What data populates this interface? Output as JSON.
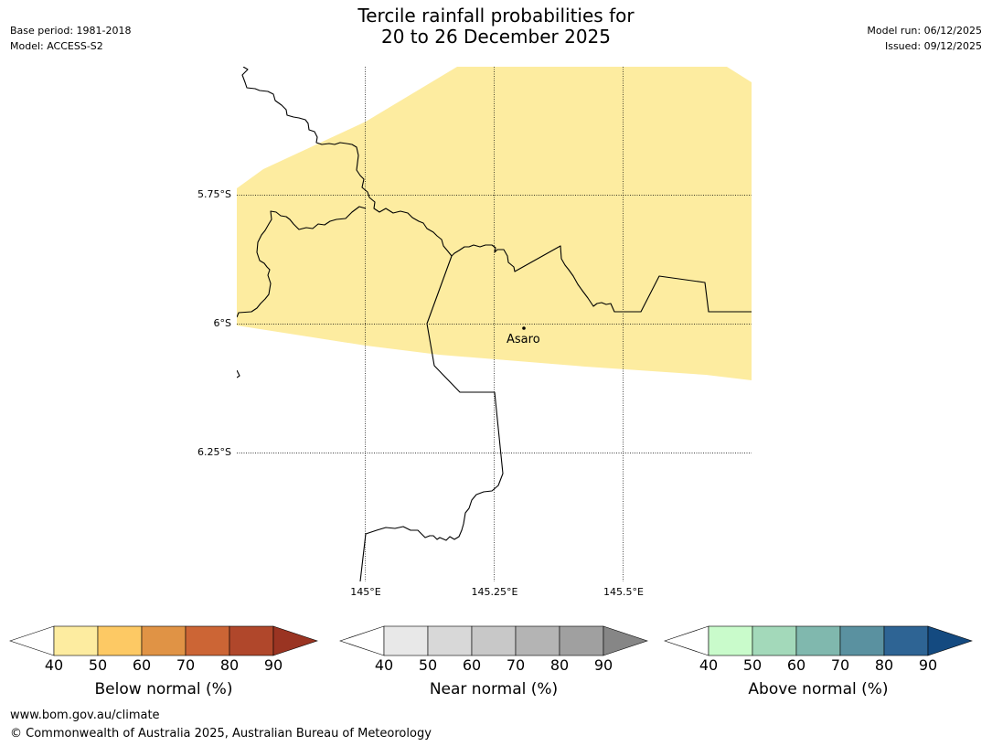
{
  "title": {
    "line1": "Tercile rainfall probabilities for",
    "line2": "20 to 26 December 2025"
  },
  "meta_left": {
    "base_period": "Base period: 1981-2018",
    "model": "Model: ACCESS-S2"
  },
  "meta_right": {
    "model_run": "Model run: 06/12/2025",
    "issued": "Issued: 09/12/2025"
  },
  "map": {
    "latitude_labels": [
      "5.75°S",
      "6°S",
      "6.25°S"
    ],
    "longitude_labels": [
      "145°E",
      "145.25°E",
      "145.5°E"
    ],
    "place_label": "Asaro",
    "fill_color": "#fdeca0",
    "shaded_category": "Below normal",
    "shaded_range": "40-50"
  },
  "colorbars": [
    {
      "name": "below",
      "label": "Below normal (%)",
      "ticks": [
        "40",
        "50",
        "60",
        "70",
        "80",
        "90"
      ],
      "colors": [
        "#fdeca0",
        "#fdc964",
        "#e09345",
        "#cc6535",
        "#b0472b",
        "#9a3422"
      ]
    },
    {
      "name": "near",
      "label": "Near normal (%)",
      "ticks": [
        "40",
        "50",
        "60",
        "70",
        "80",
        "90"
      ],
      "colors": [
        "#e8e8e8",
        "#d8d8d8",
        "#c8c8c8",
        "#b4b4b4",
        "#a0a0a0",
        "#868686"
      ]
    },
    {
      "name": "above",
      "label": "Above normal (%)",
      "ticks": [
        "40",
        "50",
        "60",
        "70",
        "80",
        "90"
      ],
      "colors": [
        "#c9fbcb",
        "#a3d9ba",
        "#80b8ae",
        "#5a91a0",
        "#2e6494",
        "#144a80"
      ]
    }
  ],
  "footer": {
    "url": "www.bom.gov.au/climate",
    "copyright": "© Commonwealth of Australia 2025, Australian Bureau of Meteorology"
  }
}
